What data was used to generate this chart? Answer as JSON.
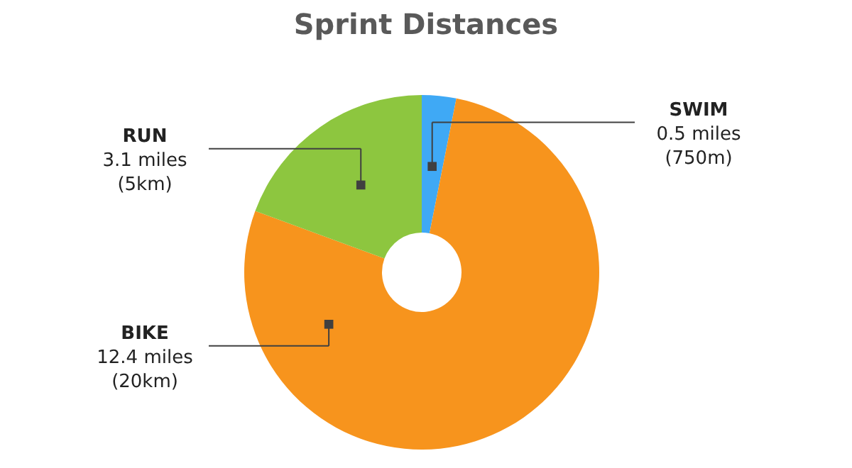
{
  "chart_data": {
    "type": "donut",
    "title": "Sprint Distances",
    "categories": [
      "SWIM",
      "BIKE",
      "RUN"
    ],
    "values": [
      0.5,
      12.4,
      3.1
    ],
    "value_labels": [
      "0.5 miles\n(750m)",
      "12.4 miles\n(20km)",
      "3.1 miles\n(5km)"
    ],
    "colors": [
      "#3fa9f5",
      "#f7941d",
      "#8dc63f"
    ]
  }
}
